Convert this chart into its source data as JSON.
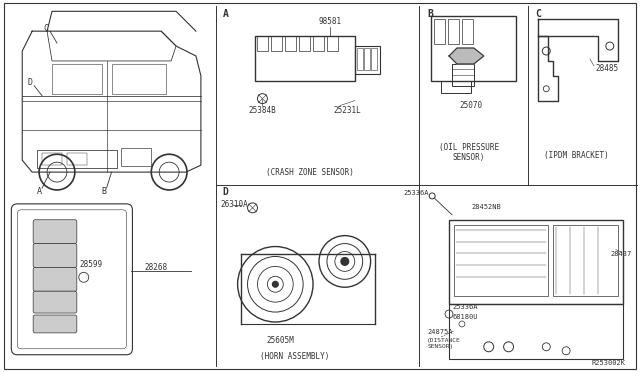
{
  "bg_color": "#ffffff",
  "line_color": "#333333",
  "text_color": "#333333",
  "fig_width": 6.4,
  "fig_height": 3.72,
  "ref_code": "R253002K",
  "part_numbers": {
    "crash_zone_sensor_top": "98581",
    "crash_zone_1": "25384B",
    "crash_zone_2": "25231L",
    "crash_zone_label": "(CRASH ZONE SENSOR)",
    "oil_pressure": "25070",
    "oil_pressure_label": "(OIL PRESSURE\nSENSOR)",
    "ipdm_bracket": "28485",
    "ipdm_label": "(IPDM BRACKET)",
    "horn_mount": "26310A",
    "horn_part": "25605M",
    "horn_label": "(HORN ASSEMBLY)",
    "dist_sensor_top": "25336A",
    "dist_452": "28452NB",
    "dist_28437": "28437",
    "dist_25336": "25336A",
    "dist_68180": "68180U",
    "dist_24875": "24875A",
    "dist_label": "(DISTANCE\nSENSOR)",
    "key_28599": "28599",
    "key_28268": "28268"
  }
}
